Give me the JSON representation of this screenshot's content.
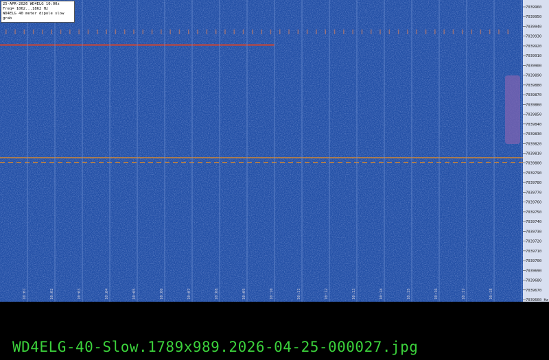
{
  "info_box": {
    "lines": [
      "25-APR-2026  WD4ELG  10:00z",
      "Freq= 1062...1862 Hz",
      "WD4ELG 40 meter dipole slow grab"
    ]
  },
  "freq_labels": [
    "7039960",
    "7039950",
    "7039940",
    "7039930",
    "7039920",
    "7039910",
    "7039900",
    "7039890",
    "7039880",
    "7039870",
    "7039860",
    "7039850",
    "7039840",
    "7039830",
    "7039820",
    "7039810",
    "7039800",
    "7039790",
    "7039780",
    "7039770",
    "7039760",
    "7039750",
    "7039740",
    "7039730",
    "7039720",
    "7039710",
    "7039700",
    "7039690",
    "7039680",
    "7039670",
    "7039660 Hz"
  ],
  "time_labels": [
    "10:01",
    "10:02",
    "10:03",
    "10:04",
    "10:05",
    "10:06",
    "10:07",
    "10:08",
    "10:09",
    "10:10",
    "10:11",
    "10:12",
    "10:13",
    "10:14",
    "10:15",
    "10:16",
    "10:17",
    "10:18"
  ],
  "caption": "WD4ELG-40-Slow.1789x989.2026-04-25-000027.jpg"
}
